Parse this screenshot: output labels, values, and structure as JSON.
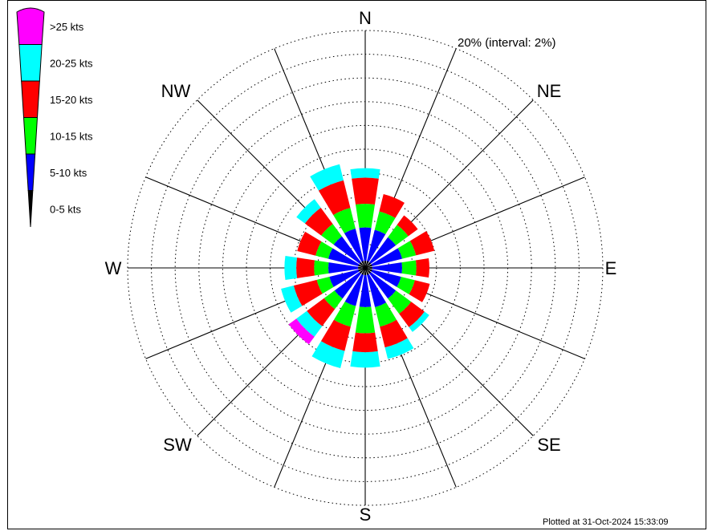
{
  "footer": "Plotted at 31-Oct-2024 15:33:09",
  "chart_data": {
    "type": "windrose",
    "ring_label": "20% (interval: 2%)",
    "radial_max": 20,
    "radial_interval": 2,
    "compass_labels": [
      "N",
      "NE",
      "E",
      "SE",
      "S",
      "SW",
      "W",
      "NW"
    ],
    "directions": [
      "N",
      "NNE",
      "NE",
      "ENE",
      "E",
      "ESE",
      "SE",
      "SSE",
      "S",
      "SSW",
      "SW",
      "WSW",
      "W",
      "WNW",
      "NW",
      "NNW"
    ],
    "legend": [
      {
        "label": ">25 kts",
        "color": "#ff00ff"
      },
      {
        "label": "20-25 kts",
        "color": "#00ffff"
      },
      {
        "label": "15-20 kts",
        "color": "#ff0000"
      },
      {
        "label": "10-15 kts",
        "color": "#00ff00"
      },
      {
        "label": "5-10 kts",
        "color": "#0000ff"
      },
      {
        "label": "0-5 kts",
        "color": "#000000"
      }
    ],
    "bins": [
      "0-5 kts",
      "5-10 kts",
      "10-15 kts",
      "15-20 kts",
      "20-25 kts",
      ">25 kts"
    ],
    "bin_colors": [
      "#000000",
      "#0000ff",
      "#00ff00",
      "#ff0000",
      "#00ffff",
      "#ff00ff"
    ],
    "cumulative_percent": {
      "N": [
        0.6,
        3.4,
        5.4,
        7.6,
        8.4,
        8.4
      ],
      "NNE": [
        0.6,
        3.3,
        4.9,
        6.4,
        6.4,
        6.4
      ],
      "NE": [
        0.6,
        3.2,
        4.5,
        5.5,
        5.5,
        5.5
      ],
      "ENE": [
        0.6,
        3.2,
        4.4,
        6.0,
        6.0,
        6.0
      ],
      "E": [
        0.6,
        3.1,
        4.3,
        5.4,
        5.4,
        5.4
      ],
      "ESE": [
        0.6,
        3.1,
        4.3,
        5.6,
        5.6,
        5.6
      ],
      "SE": [
        0.6,
        3.2,
        4.8,
        6.2,
        6.7,
        6.7
      ],
      "SSE": [
        0.6,
        3.4,
        5.1,
        6.9,
        7.9,
        7.9
      ],
      "S": [
        0.6,
        3.3,
        5.5,
        7.1,
        8.4,
        8.4
      ],
      "SSW": [
        0.6,
        3.3,
        5.1,
        7.2,
        8.7,
        8.7
      ],
      "SW": [
        0.6,
        3.2,
        4.3,
        6.1,
        7.2,
        8.0
      ],
      "WSW": [
        0.6,
        3.1,
        4.2,
        6.2,
        7.3,
        7.3
      ],
      "W": [
        0.6,
        3.1,
        4.3,
        5.8,
        6.8,
        6.8
      ],
      "WNW": [
        0.6,
        3.2,
        4.3,
        5.9,
        5.9,
        5.9
      ],
      "NW": [
        0.6,
        3.3,
        4.6,
        6.3,
        7.2,
        7.2
      ],
      "NNW": [
        0.6,
        3.4,
        5.2,
        7.6,
        9.0,
        9.0
      ]
    }
  }
}
